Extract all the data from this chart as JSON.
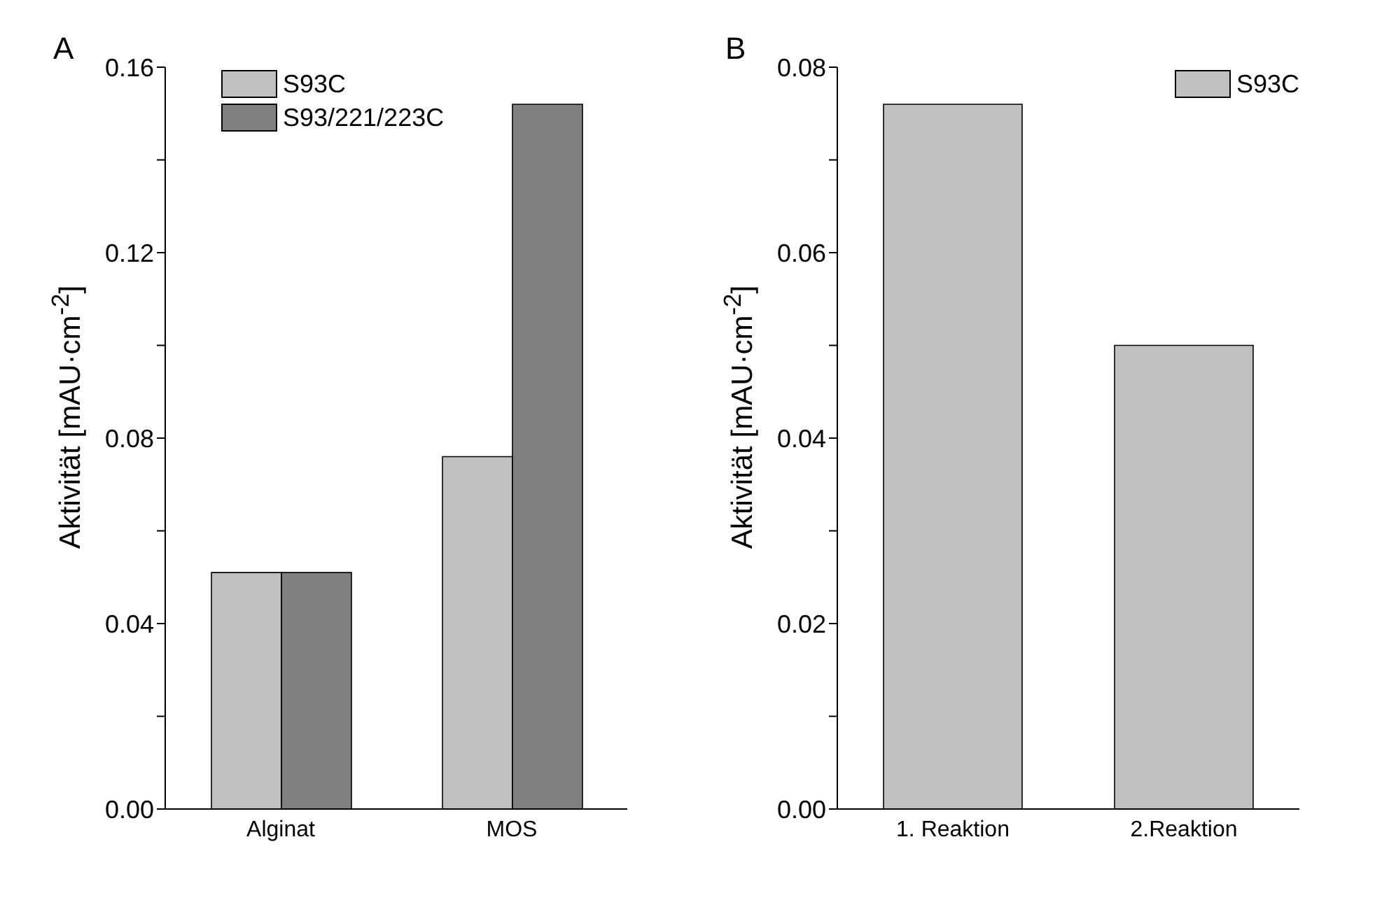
{
  "chart_data": [
    {
      "type": "bar",
      "title": "A",
      "ylabel": "Aktivität [mAU·cm$^{-2}$]",
      "categories": [
        "Alginat",
        "MOS"
      ],
      "series": [
        {
          "name": "S93C",
          "color": "#c0c0c0",
          "values": [
            0.051,
            0.076
          ]
        },
        {
          "name": "S93/221/223C",
          "color": "#808080",
          "values": [
            0.051,
            0.152
          ]
        }
      ],
      "ylim": [
        0,
        0.16
      ],
      "yticks": [
        {
          "value": 0,
          "label": "0.00"
        },
        {
          "value": 0.02,
          "label": null
        },
        {
          "value": 0.04,
          "label": "0.04"
        },
        {
          "value": 0.06,
          "label": null
        },
        {
          "value": 0.08,
          "label": "0.08"
        },
        {
          "value": 0.1,
          "label": null
        },
        {
          "value": 0.12,
          "label": "0.12"
        },
        {
          "value": 0.14,
          "label": null
        },
        {
          "value": 0.16,
          "label": "0.16"
        }
      ],
      "legend": "top",
      "grid": false
    },
    {
      "type": "bar",
      "title": "B",
      "ylabel": "Aktivität [mAU·cm$^{-2}$]",
      "categories": [
        "1. Reaktion",
        "2.Reaktion"
      ],
      "series": [
        {
          "name": "S93C",
          "color": "#c0c0c0",
          "values": [
            0.076,
            0.05
          ]
        }
      ],
      "ylim": [
        0,
        0.08
      ],
      "yticks": [
        {
          "value": 0,
          "label": "0.00"
        },
        {
          "value": 0.01,
          "label": null
        },
        {
          "value": 0.02,
          "label": "0.02"
        },
        {
          "value": 0.03,
          "label": null
        },
        {
          "value": 0.04,
          "label": "0.04"
        },
        {
          "value": 0.05,
          "label": null
        },
        {
          "value": 0.06,
          "label": "0.06"
        },
        {
          "value": 0.07,
          "label": null
        },
        {
          "value": 0.08,
          "label": "0.08"
        }
      ],
      "legend": "top right",
      "grid": false
    }
  ]
}
